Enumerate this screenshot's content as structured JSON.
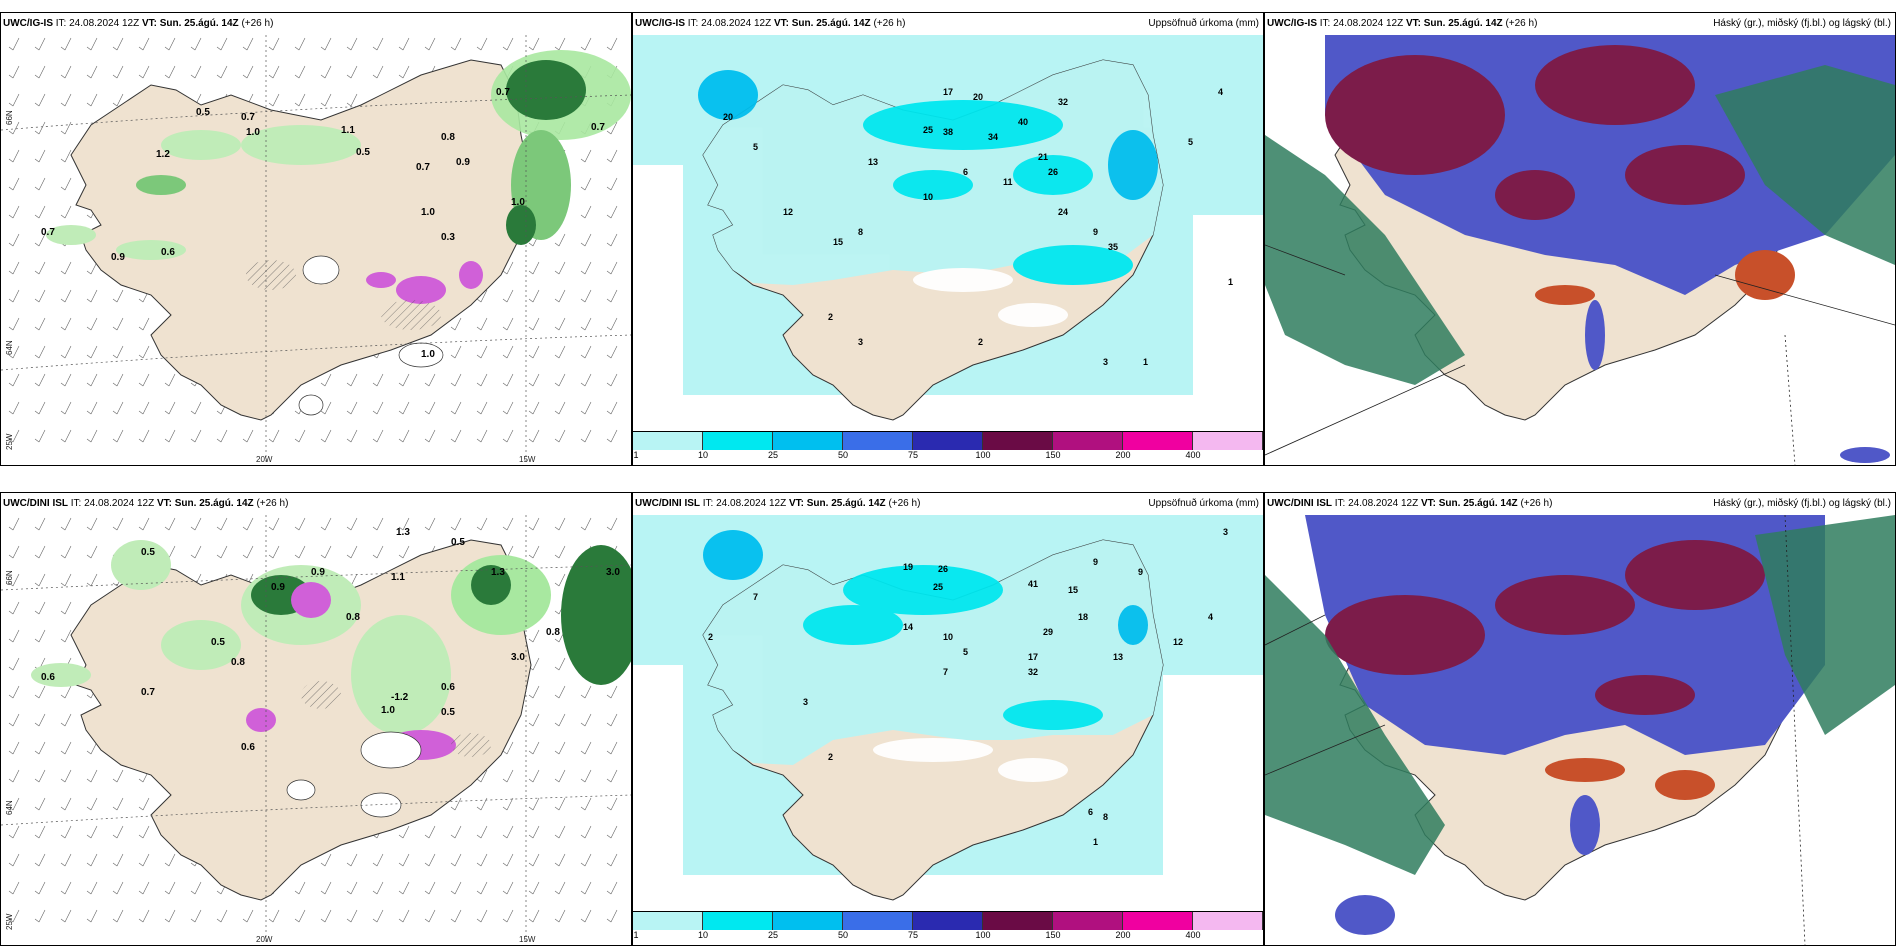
{
  "panels": {
    "top_left": {
      "model": "UWC/IG-IS",
      "init": "IT: 24.08.2024 12Z",
      "valid_label": "VT:",
      "valid": "Sun. 25.ágú. 14Z",
      "lead": "(+26 h)",
      "right_title": ""
    },
    "top_mid": {
      "model": "UWC/IG-IS",
      "init": "IT: 24.08.2024 12Z",
      "valid_label": "VT:",
      "valid": "Sun. 25.ágú. 14Z",
      "lead": "(+26 h)",
      "right_title": "Uppsöfnuð úrkoma (mm)"
    },
    "top_right": {
      "model": "UWC/IG-IS",
      "init": "IT: 24.08.2024 12Z",
      "valid_label": "VT:",
      "valid": "Sun. 25.ágú. 14Z",
      "lead": "(+26 h)",
      "right_title": "Háský (gr.), miðský (fj.bl.) og lágský (bl.)"
    },
    "bot_left": {
      "model": "UWC/DINI ISL",
      "init": "IT: 24.08.2024 12Z",
      "valid_label": "VT:",
      "valid": "Sun. 25.ágú. 14Z",
      "lead": "(+26 h)",
      "right_title": ""
    },
    "bot_mid": {
      "model": "UWC/DINI ISL",
      "init": "IT: 24.08.2024 12Z",
      "valid_label": "VT:",
      "valid": "Sun. 25.ágú. 14Z",
      "lead": "(+26 h)",
      "right_title": "Uppsöfnuð úrkoma (mm)"
    },
    "bot_right": {
      "model": "UWC/DINI ISL",
      "init": "IT: 24.08.2024 12Z",
      "valid_label": "VT:",
      "valid": "Sun. 25.ágú. 14Z",
      "lead": "(+26 h)",
      "right_title": "Háský (gr.), miðský (fj.bl.) og lágský (bl.)"
    }
  },
  "axis_labels": {
    "lon_20w": "20W",
    "lon_15w": "15W",
    "lat_66n": "66N",
    "lat_64n": "64N",
    "lon_25w": "25W"
  },
  "colorbar": {
    "labels": [
      "1",
      "10",
      "25",
      "50",
      "75",
      "100",
      "150",
      "200",
      "400"
    ],
    "colors": [
      "#b8f4f4",
      "#00e8f0",
      "#00bfef",
      "#3a6ee8",
      "#2a2ab0",
      "#6a0b45",
      "#b0107f",
      "#f000a0",
      "#f4b8f0"
    ]
  },
  "map_colors": {
    "land": "#efe2d0",
    "water": "#ffffff",
    "precip_light": "#b8f4f4",
    "precip_mid": "#00e8f0",
    "cloud_high": "#2f7d5e",
    "cloud_mid": "#7c1c4a",
    "cloud_low": "#5058c8",
    "green_light": "#a8e8a0",
    "green_dark": "#2a7a3a",
    "magenta": "#d060d8"
  },
  "precip_values_top": [
    "17",
    "20",
    "32",
    "25",
    "38",
    "34",
    "40",
    "26",
    "21",
    "11",
    "10",
    "13",
    "35",
    "24",
    "15",
    "6",
    "9",
    "8",
    "12",
    "2",
    "3",
    "5",
    "4",
    "1"
  ],
  "precip_values_bot": [
    "19",
    "26",
    "25",
    "41",
    "15",
    "18",
    "29",
    "17",
    "32",
    "13",
    "10",
    "14",
    "12",
    "7",
    "5",
    "3",
    "2",
    "1",
    "4",
    "6",
    "8",
    "9"
  ],
  "ice_values_top": [
    "0.5",
    "0.7",
    "0.9",
    "1.0",
    "0.8",
    "0.6",
    "1.1",
    "1.2",
    "0.3"
  ],
  "ice_values_bot": [
    "0.5",
    "0.9",
    "0.8",
    "1.1",
    "1.3",
    "0.6",
    "0.7",
    "-1.2",
    "1.0",
    "3.0"
  ]
}
